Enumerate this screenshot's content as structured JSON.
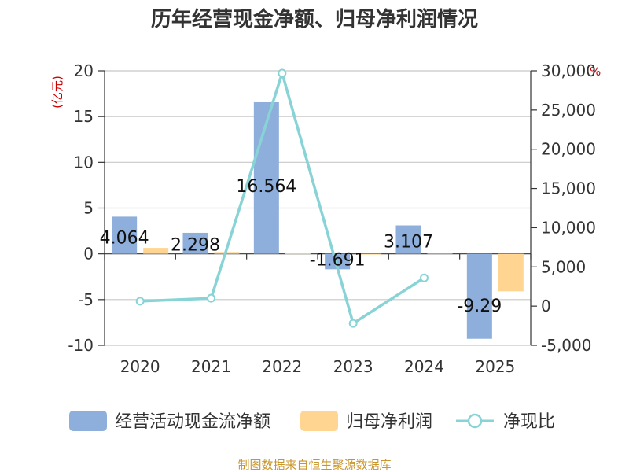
{
  "chart_data": {
    "type": "bar",
    "title": "历年经营现金净额、归母净利润情况",
    "categories": [
      "2020",
      "2021",
      "2022",
      "2023",
      "2024",
      "2025"
    ],
    "left_axis": {
      "unit": "(亿元)",
      "ylim": [
        -10,
        20
      ],
      "ticks": [
        "20",
        "15",
        "10",
        "5",
        "0",
        "-5",
        "-10"
      ],
      "tick_values": [
        20,
        15,
        10,
        5,
        0,
        -5,
        -10
      ]
    },
    "right_axis": {
      "unit": "%",
      "ylim": [
        -5000,
        30000
      ],
      "ticks": [
        "30,000",
        "25,000",
        "20,000",
        "15,000",
        "10,000",
        "5,000",
        "0",
        "-5,000"
      ],
      "tick_values": [
        30000,
        25000,
        20000,
        15000,
        10000,
        5000,
        0,
        -5000
      ]
    },
    "series": [
      {
        "name": "经营活动现金流净额",
        "kind": "bar",
        "axis": "left",
        "color": "#8eaedb",
        "values": [
          4.064,
          2.298,
          16.564,
          -1.691,
          3.107,
          -9.29
        ],
        "labels": [
          "4.064",
          "2.298",
          "16.564",
          "-1.691",
          "3.107",
          "-9.29"
        ]
      },
      {
        "name": "归母净利润",
        "kind": "bar",
        "axis": "left",
        "color": "#ffd591",
        "values": [
          0.65,
          0.2,
          0.05,
          -0.05,
          0.1,
          -4.1
        ]
      },
      {
        "name": "净现比",
        "kind": "line",
        "axis": "right",
        "color": "#88d3d6",
        "values": [
          625,
          1000,
          29700,
          -2200,
          3600,
          null
        ]
      }
    ],
    "grid": true,
    "legend_position": "bottom"
  },
  "source_text": "制图数据来自恒生聚源数据库"
}
